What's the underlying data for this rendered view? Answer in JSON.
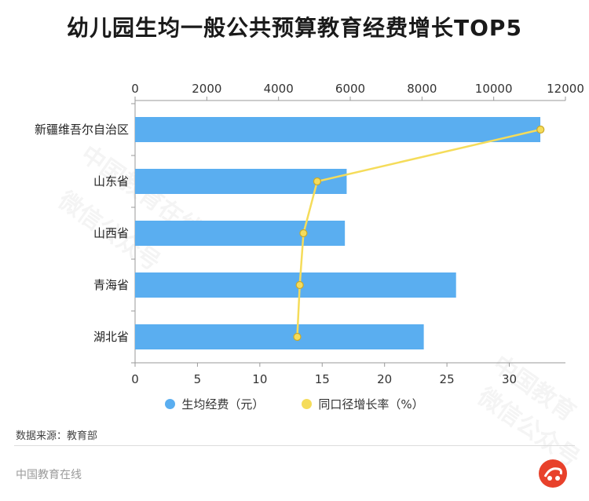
{
  "chart_data": {
    "type": "bar",
    "title": "幼儿园生均一般公共预算教育经费增长TOP5",
    "categories": [
      "新疆维吾尔自治区",
      "山东省",
      "山西省",
      "青海省",
      "湖北省"
    ],
    "series": [
      {
        "name": "生均经费（元）",
        "type": "bar",
        "axis": "top",
        "values": [
          11300,
          5900,
          5850,
          8950,
          8050
        ]
      },
      {
        "name": "同口径增长率（%）",
        "type": "line",
        "axis": "bottom",
        "values": [
          32.5,
          14.6,
          13.5,
          13.2,
          13.0
        ]
      }
    ],
    "top_axis": {
      "range": [
        0,
        12000
      ],
      "ticks": [
        0,
        2000,
        4000,
        6000,
        8000,
        10000,
        12000
      ]
    },
    "bottom_axis": {
      "range": [
        0,
        34.5
      ],
      "ticks": [
        0,
        5,
        10,
        15,
        20,
        25,
        30
      ]
    },
    "colors": {
      "bar": "#5aaef0",
      "line": "#f5dc5a",
      "point_stroke": "#c9a92a"
    }
  },
  "legend": {
    "bar_label": "生均经费（元）",
    "line_label": "同口径增长率（%）"
  },
  "source": "数据来源：教育部",
  "footer": "中国教育在线",
  "watermark": {
    "left": "中国教育在线",
    "left_sub": "微信公众号",
    "right": "中国教育",
    "right_sub": "微信公众号"
  }
}
